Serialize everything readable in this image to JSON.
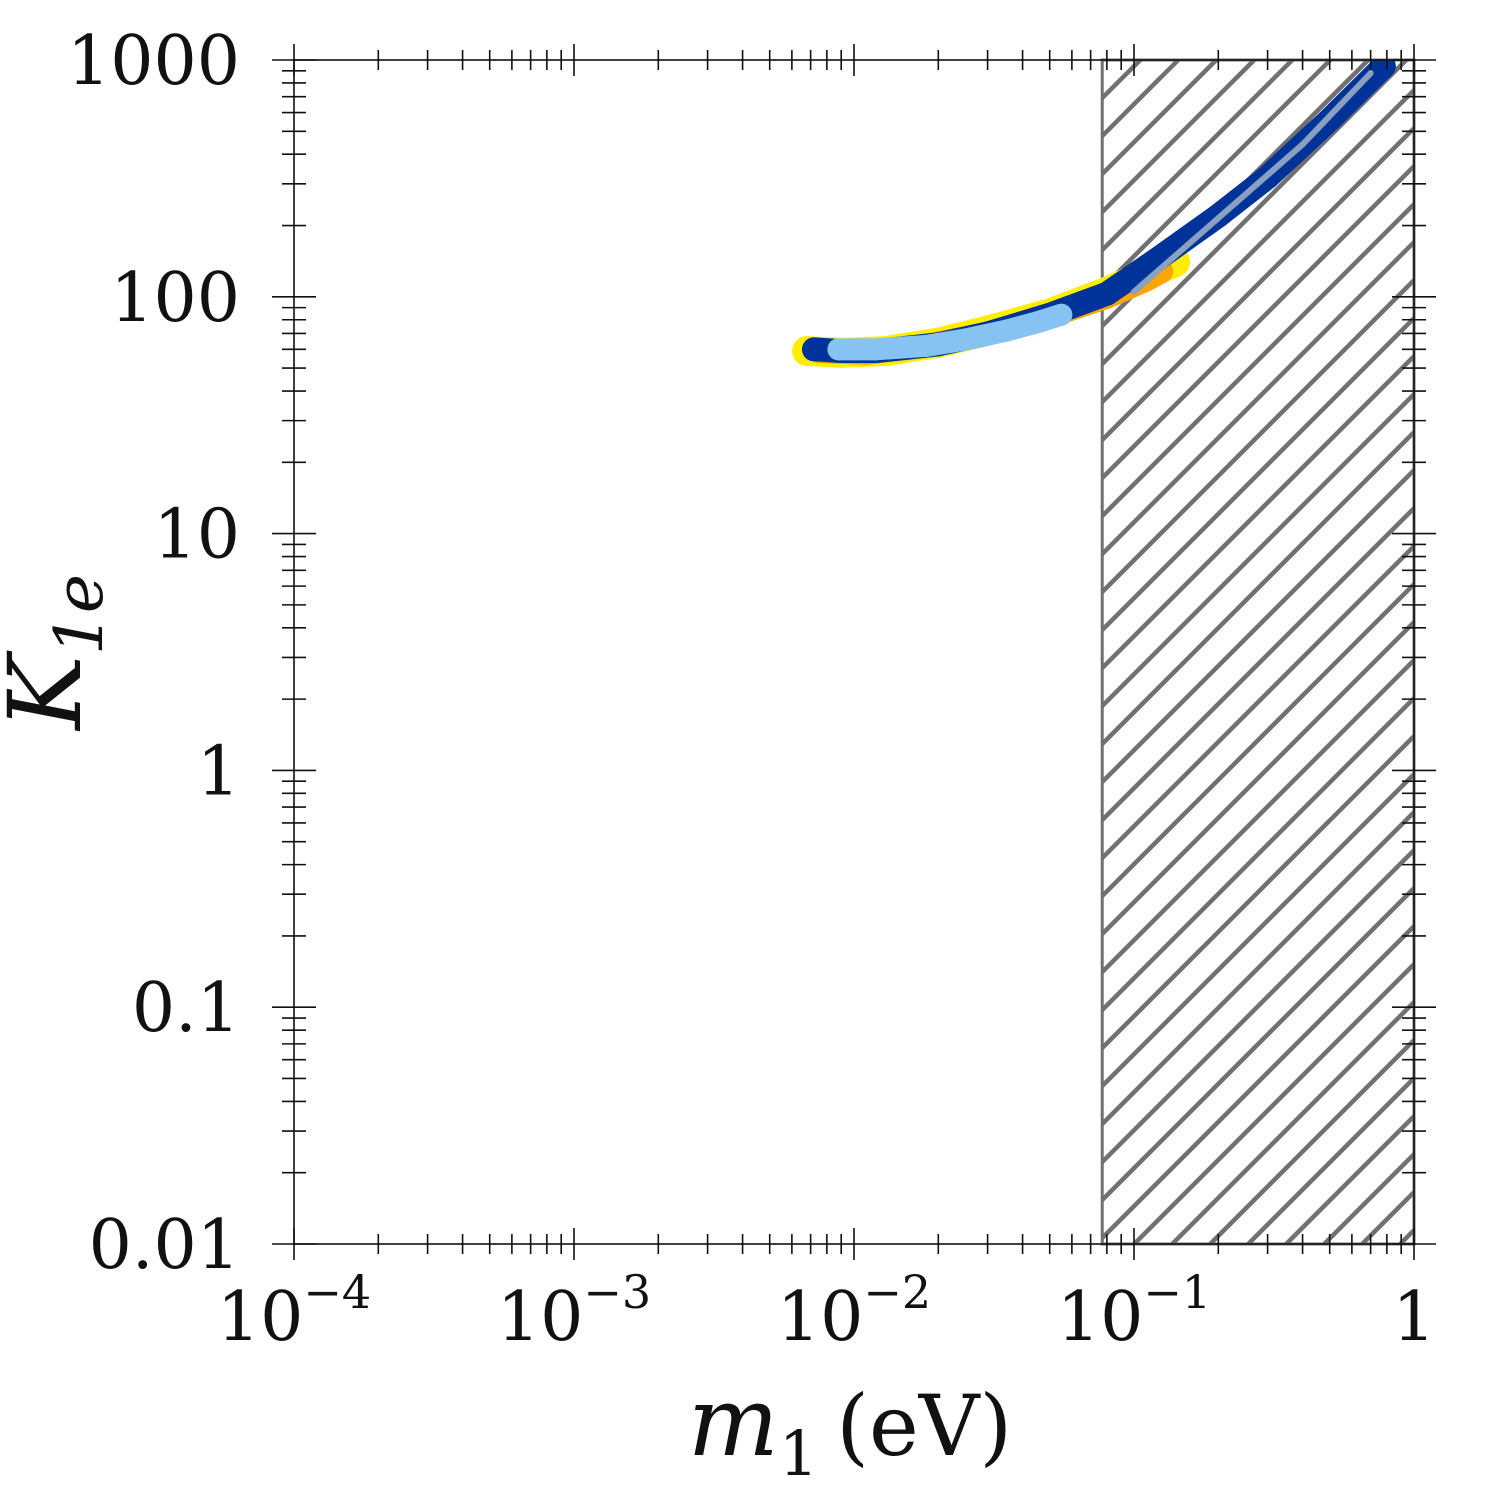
{
  "chart_data": {
    "type": "scatter",
    "x_scale": "log",
    "y_scale": "log",
    "xlim": [
      0.0001,
      1
    ],
    "ylim": [
      0.01,
      1000
    ],
    "x_ticks": [
      {
        "value": 0.0001,
        "base": "10",
        "exp": "−4"
      },
      {
        "value": 0.001,
        "base": "10",
        "exp": "−3"
      },
      {
        "value": 0.01,
        "base": "10",
        "exp": "−2"
      },
      {
        "value": 0.1,
        "base": "10",
        "exp": "−1"
      },
      {
        "value": 1,
        "base": "1",
        "exp": ""
      }
    ],
    "y_ticks": [
      {
        "value": 1000,
        "label": "1000"
      },
      {
        "value": 100,
        "label": "100"
      },
      {
        "value": 10,
        "label": "10"
      },
      {
        "value": 1,
        "label": "1"
      },
      {
        "value": 0.1,
        "label": "0.1"
      },
      {
        "value": 0.01,
        "label": "0.01"
      }
    ],
    "x_title": {
      "var": "m",
      "sub": "1",
      "unit": "(eV)"
    },
    "y_title": {
      "var": "K",
      "sub": "1e"
    },
    "excluded_region": {
      "x_min": 0.077,
      "x_max": 1,
      "pattern": "hatched",
      "color": "#707070"
    },
    "series": [
      {
        "color": "#ffee00",
        "points": [
          [
            0.0068,
            59
          ],
          [
            0.009,
            58
          ],
          [
            0.013,
            59
          ],
          [
            0.02,
            64
          ],
          [
            0.03,
            72
          ],
          [
            0.05,
            85
          ],
          [
            0.08,
            105
          ],
          [
            0.12,
            130
          ],
          [
            0.14,
            140
          ]
        ]
      },
      {
        "color": "#ffa500",
        "points": [
          [
            0.0075,
            59
          ],
          [
            0.011,
            58
          ],
          [
            0.018,
            62
          ],
          [
            0.03,
            70
          ],
          [
            0.05,
            83
          ],
          [
            0.08,
            100
          ],
          [
            0.11,
            118
          ],
          [
            0.125,
            128
          ]
        ]
      },
      {
        "color": "#003399",
        "points": [
          [
            0.0072,
            60
          ],
          [
            0.009,
            59
          ],
          [
            0.012,
            59
          ],
          [
            0.02,
            63
          ],
          [
            0.03,
            70
          ],
          [
            0.05,
            84
          ],
          [
            0.08,
            103
          ],
          [
            0.12,
            143
          ],
          [
            0.2,
            220
          ],
          [
            0.3,
            320
          ],
          [
            0.5,
            560
          ],
          [
            0.75,
            900
          ],
          [
            0.78,
            940
          ]
        ]
      },
      {
        "color": "#87c3f2",
        "points": [
          [
            0.0088,
            60
          ],
          [
            0.012,
            60
          ],
          [
            0.018,
            62
          ],
          [
            0.025,
            66
          ],
          [
            0.035,
            72
          ],
          [
            0.045,
            78
          ],
          [
            0.055,
            84
          ]
        ]
      },
      {
        "color": "#8aa0c0",
        "points": [
          [
            0.1,
            105
          ],
          [
            0.2,
            215
          ],
          [
            0.4,
            440
          ],
          [
            0.7,
            880
          ]
        ]
      }
    ]
  }
}
